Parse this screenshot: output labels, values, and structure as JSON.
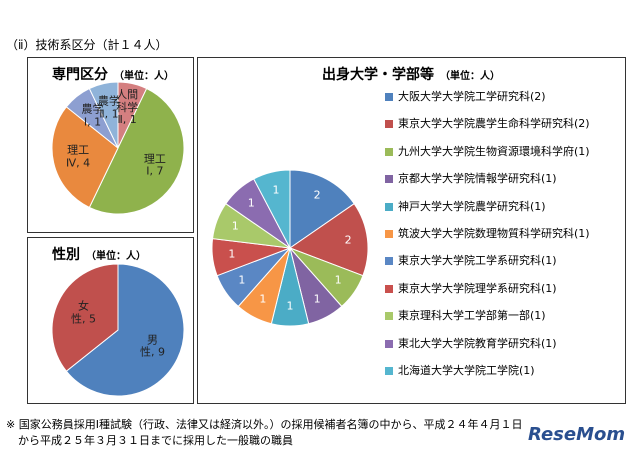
{
  "header": {
    "title": "（ⅱ）技術系区分（計１４人）"
  },
  "chart_data": [
    {
      "type": "pie",
      "title": "専門区分",
      "subtitle": "（単位：人）",
      "categories": [
        "人間科学Ⅱ",
        "理工Ⅰ",
        "理工Ⅳ",
        "農学Ⅰ",
        "農学Ⅱ"
      ],
      "values": [
        1,
        7,
        4,
        1,
        1
      ],
      "value_labels": [
        "人間\n科学\nⅡ, 1",
        "理工\nⅠ, 7",
        "理工\nⅣ, 4",
        "農学\nⅠ, 1",
        "農学\nⅡ, 1"
      ],
      "colors": [
        "#d47f80",
        "#8fb24c",
        "#e9893e",
        "#8d9fd1",
        "#8fb3d9"
      ],
      "legend": false
    },
    {
      "type": "pie",
      "title": "性別",
      "subtitle": "（単位：人）",
      "categories": [
        "男性",
        "女性"
      ],
      "values": [
        9,
        5
      ],
      "value_labels": [
        "男\n性, 9",
        "女\n性, 5"
      ],
      "colors": [
        "#4f81bd",
        "#c0504d"
      ],
      "legend": false
    },
    {
      "type": "pie",
      "title": "出身大学・学部等",
      "subtitle": "（単位：人）",
      "categories": [
        "大阪大学大学院工学研究科(2)",
        "東京大学大学院農学生命科学研究科(2)",
        "九州大学大学院生物資源環境科学府(1)",
        "京都大学大学院情報学研究科(1)",
        "神戸大学大学院農学研究科(1)",
        "筑波大学大学院数理物質科学研究科(1)",
        "東京大学大学院工学系研究科(1)",
        "東京大学大学院理学系研究科(1)",
        "東京理科大学工学部第一部(1)",
        "東北大学大学院教育学研究科(1)",
        "北海道大学大学院工学院(1)"
      ],
      "values": [
        2,
        2,
        1,
        1,
        1,
        1,
        1,
        1,
        1,
        1,
        1
      ],
      "colors": [
        "#4f81bd",
        "#c0504d",
        "#9bbb59",
        "#8064a2",
        "#4bacc6",
        "#f79646",
        "#5a87c4",
        "#c9504d",
        "#a9c96a",
        "#8b6cb0",
        "#55b6cf"
      ],
      "legend": true
    }
  ],
  "footnote": [
    "※ 国家公務員採用Ⅰ種試験（行政、法律又は経済以外。）の採用候補者名簿の中から、平成２４年４月１日",
    "から平成２５年３月３１日までに採用した一般職の職員"
  ],
  "watermark": "ReseMom"
}
